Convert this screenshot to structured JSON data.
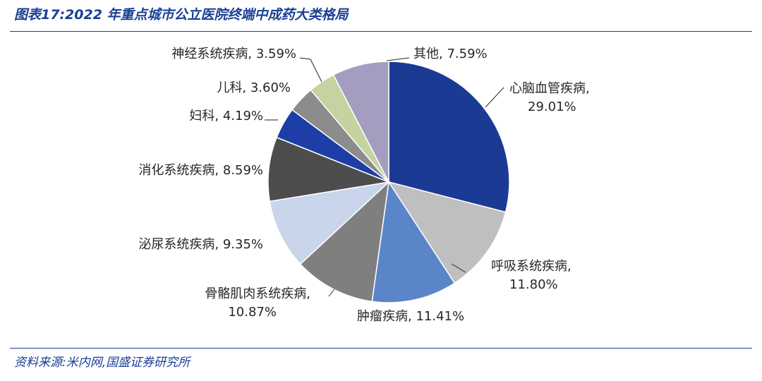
{
  "header": {
    "title": "图表17:2022 年重点城市公立医院终端中成药大类格局"
  },
  "footer": {
    "source": "资料来源:米内网,国盛证券研究所"
  },
  "chart_data": {
    "type": "pie",
    "title": "图表17:2022 年重点城市公立医院终端中成药大类格局",
    "start": "12 o'clock",
    "direction": "clockwise",
    "slices": [
      {
        "label": "心脑血管疾病",
        "value": 29.01,
        "display": "29.01%",
        "color": "#1a3a94"
      },
      {
        "label": "呼吸系统疾病",
        "value": 11.8,
        "display": "11.80%",
        "color": "#bfbfbf"
      },
      {
        "label": "肿瘤疾病",
        "value": 11.41,
        "display": "11.41%",
        "color": "#5b85c9"
      },
      {
        "label": "骨骼肌肉系统疾病",
        "value": 10.87,
        "display": "10.87%",
        "color": "#7f7f7f"
      },
      {
        "label": "泌尿系统疾病",
        "value": 9.35,
        "display": "9.35%",
        "color": "#c8d5ea"
      },
      {
        "label": "消化系统疾病",
        "value": 8.59,
        "display": "8.59%",
        "color": "#4d4d4d"
      },
      {
        "label": "妇科",
        "value": 4.19,
        "display": "4.19%",
        "color": "#1d3ea6"
      },
      {
        "label": "儿科",
        "value": 3.6,
        "display": "3.60%",
        "color": "#8c8c8c"
      },
      {
        "label": "神经系统疾病",
        "value": 3.59,
        "display": "3.59%",
        "color": "#c4d3a0"
      },
      {
        "label": "其他",
        "value": 7.59,
        "display": "7.59%",
        "color": "#a59dbf"
      }
    ]
  }
}
